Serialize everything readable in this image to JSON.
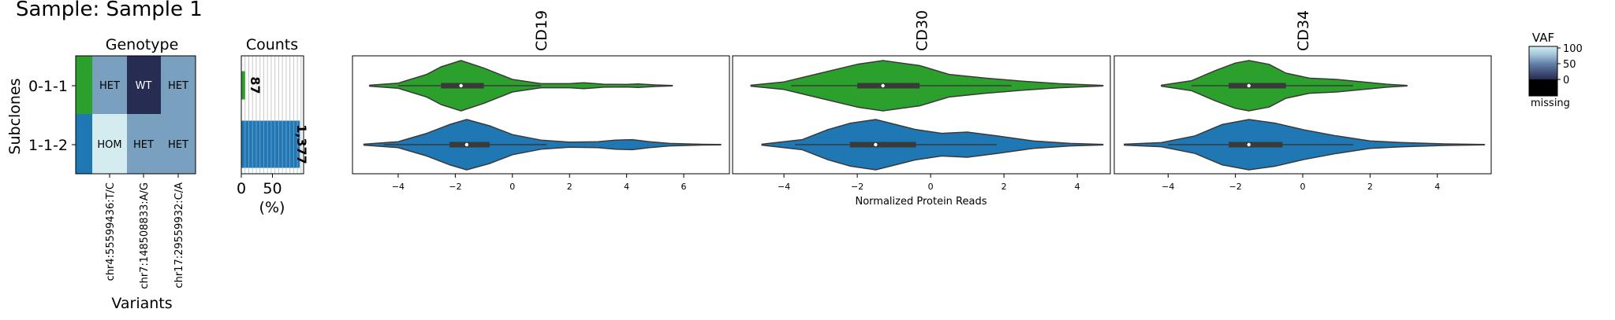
{
  "title": "Sample: Sample 1",
  "colors": {
    "clone_0": "#2ca02c",
    "clone_1": "#1f77b4",
    "het": "#7aa0bf",
    "wt": "#262c52",
    "hom": "#d4ecf0",
    "cmap": [
      "#000000",
      "#262c52",
      "#5f7ba4",
      "#a3c4d9",
      "#d4ecf0"
    ]
  },
  "chart_data": [
    {
      "type": "heatmap",
      "name": "genotype",
      "title": "Genotype",
      "ylabel": "Subclones",
      "xlabel": "Variants",
      "rows": [
        "0-1-1",
        "1-1-2"
      ],
      "columns": [
        "chr4:55599436:T/C",
        "chr7:148508833:A/G",
        "chr17:29559932:C/A"
      ],
      "cells": [
        [
          "HET",
          "WT",
          "HET"
        ],
        [
          "HOM",
          "HET",
          "HET"
        ]
      ]
    },
    {
      "type": "bar",
      "name": "counts",
      "title": "Counts",
      "orientation": "horizontal",
      "categories": [
        "0-1-1",
        "1-1-2"
      ],
      "values_pct": [
        6,
        94
      ],
      "labels": [
        "87",
        "1,377"
      ],
      "xticks": [
        0,
        50
      ],
      "xlabel": "(%)",
      "xlim": [
        0,
        100
      ]
    },
    {
      "type": "violin",
      "name": "protein",
      "xlabel": "Normalized Protein Reads",
      "panels": [
        {
          "title": "CD19",
          "xlim": [
            -5.6,
            7.6
          ],
          "xticks": [
            -4,
            -2,
            0,
            2,
            4,
            6
          ],
          "series": [
            {
              "name": "0-1-1",
              "range": [
                -5.0,
                5.6
              ],
              "q1": -2.5,
              "median": -1.8,
              "q3": -1.0,
              "wl": -4.0,
              "wh": 1.0,
              "density": [
                [
                  -5.0,
                  0.02
                ],
                [
                  -4.0,
                  0.1
                ],
                [
                  -3.0,
                  0.45
                ],
                [
                  -2.5,
                  0.75
                ],
                [
                  -1.8,
                  1.0
                ],
                [
                  -1.0,
                  0.7
                ],
                [
                  0.0,
                  0.25
                ],
                [
                  1.0,
                  0.08
                ],
                [
                  2.0,
                  0.08
                ],
                [
                  2.5,
                  0.12
                ],
                [
                  3.2,
                  0.06
                ],
                [
                  4.0,
                  0.05
                ],
                [
                  4.4,
                  0.07
                ],
                [
                  5.0,
                  0.03
                ],
                [
                  5.6,
                  0.01
                ]
              ]
            },
            {
              "name": "1-1-2",
              "range": [
                -5.2,
                7.3
              ],
              "q1": -2.2,
              "median": -1.6,
              "q3": -0.8,
              "wl": -4.5,
              "wh": 1.2,
              "density": [
                [
                  -5.2,
                  0.02
                ],
                [
                  -4.0,
                  0.12
                ],
                [
                  -3.0,
                  0.45
                ],
                [
                  -2.2,
                  0.8
                ],
                [
                  -1.6,
                  1.0
                ],
                [
                  -0.8,
                  0.75
                ],
                [
                  0.0,
                  0.4
                ],
                [
                  1.0,
                  0.18
                ],
                [
                  2.0,
                  0.1
                ],
                [
                  3.0,
                  0.12
                ],
                [
                  3.6,
                  0.18
                ],
                [
                  4.2,
                  0.2
                ],
                [
                  4.8,
                  0.12
                ],
                [
                  5.5,
                  0.05
                ],
                [
                  6.5,
                  0.02
                ],
                [
                  7.3,
                  0.01
                ]
              ]
            }
          ]
        },
        {
          "title": "CD30",
          "xlim": [
            -5.4,
            4.9
          ],
          "xticks": [
            -4,
            -2,
            0,
            2,
            4
          ],
          "series": [
            {
              "name": "0-1-1",
              "range": [
                -4.9,
                4.7
              ],
              "q1": -2.0,
              "median": -1.3,
              "q3": -0.3,
              "wl": -3.8,
              "wh": 2.2,
              "density": [
                [
                  -4.9,
                  0.02
                ],
                [
                  -4.0,
                  0.15
                ],
                [
                  -3.0,
                  0.5
                ],
                [
                  -2.0,
                  0.85
                ],
                [
                  -1.3,
                  1.0
                ],
                [
                  -0.3,
                  0.8
                ],
                [
                  0.5,
                  0.45
                ],
                [
                  1.5,
                  0.3
                ],
                [
                  2.5,
                  0.18
                ],
                [
                  3.5,
                  0.08
                ],
                [
                  4.7,
                  0.01
                ]
              ]
            },
            {
              "name": "1-1-2",
              "range": [
                -4.6,
                4.7
              ],
              "q1": -2.2,
              "median": -1.5,
              "q3": -0.4,
              "wl": -3.7,
              "wh": 1.8,
              "density": [
                [
                  -4.6,
                  0.02
                ],
                [
                  -3.5,
                  0.2
                ],
                [
                  -2.8,
                  0.6
                ],
                [
                  -2.2,
                  0.85
                ],
                [
                  -1.5,
                  1.0
                ],
                [
                  -0.4,
                  0.6
                ],
                [
                  0.3,
                  0.45
                ],
                [
                  1.0,
                  0.5
                ],
                [
                  1.8,
                  0.35
                ],
                [
                  2.8,
                  0.15
                ],
                [
                  3.8,
                  0.05
                ],
                [
                  4.7,
                  0.01
                ]
              ]
            }
          ]
        },
        {
          "title": "CD34",
          "xlim": [
            -5.6,
            5.6
          ],
          "xticks": [
            -4,
            -2,
            0,
            2,
            4
          ],
          "series": [
            {
              "name": "0-1-1",
              "range": [
                -4.2,
                3.1
              ],
              "q1": -2.2,
              "median": -1.6,
              "q3": -0.5,
              "wl": -3.3,
              "wh": 1.5,
              "density": [
                [
                  -4.2,
                  0.02
                ],
                [
                  -3.3,
                  0.2
                ],
                [
                  -2.6,
                  0.6
                ],
                [
                  -2.0,
                  0.9
                ],
                [
                  -1.6,
                  1.0
                ],
                [
                  -1.0,
                  0.85
                ],
                [
                  -0.5,
                  0.5
                ],
                [
                  0.2,
                  0.3
                ],
                [
                  1.0,
                  0.25
                ],
                [
                  1.8,
                  0.15
                ],
                [
                  2.5,
                  0.06
                ],
                [
                  3.1,
                  0.01
                ]
              ]
            },
            {
              "name": "1-1-2",
              "range": [
                -5.3,
                5.4
              ],
              "q1": -2.2,
              "median": -1.6,
              "q3": -0.6,
              "wl": -4.0,
              "wh": 1.5,
              "density": [
                [
                  -5.3,
                  0.02
                ],
                [
                  -4.2,
                  0.08
                ],
                [
                  -3.2,
                  0.35
                ],
                [
                  -2.4,
                  0.8
                ],
                [
                  -1.6,
                  1.0
                ],
                [
                  -0.8,
                  0.85
                ],
                [
                  0.0,
                  0.6
                ],
                [
                  1.0,
                  0.35
                ],
                [
                  2.0,
                  0.15
                ],
                [
                  3.0,
                  0.08
                ],
                [
                  4.2,
                  0.03
                ],
                [
                  5.4,
                  0.01
                ]
              ]
            }
          ]
        }
      ]
    },
    {
      "type": "colorbar",
      "name": "vaf",
      "title": "VAF",
      "ticks": [
        "100",
        "50",
        "0"
      ],
      "missing_label": "missing"
    }
  ]
}
